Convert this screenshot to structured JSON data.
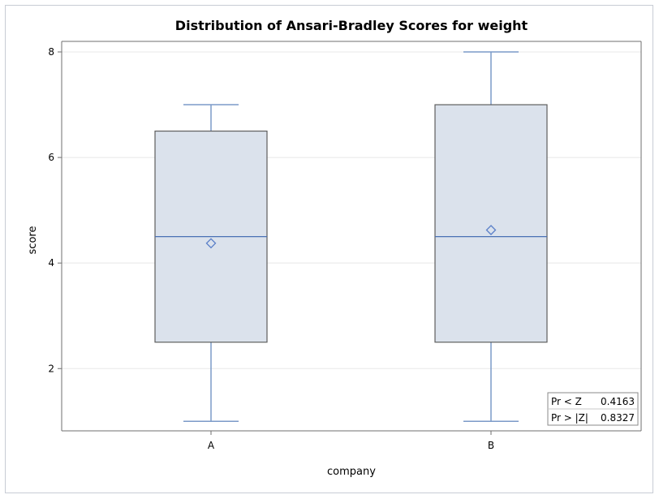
{
  "chart_data": {
    "type": "box",
    "title": "Distribution of Ansari-Bradley Scores for weight",
    "xlabel": "company",
    "ylabel": "score",
    "categories": [
      "A",
      "B"
    ],
    "ylim": [
      0.82,
      8.2
    ],
    "yticks": [
      2,
      4,
      6,
      8
    ],
    "grid": true,
    "boxes": [
      {
        "category": "A",
        "min": 1,
        "q1": 2.5,
        "median": 4.5,
        "q3": 6.5,
        "max": 7,
        "mean": 4.375
      },
      {
        "category": "B",
        "min": 1,
        "q1": 2.5,
        "median": 4.5,
        "q3": 7,
        "max": 8,
        "mean": 4.625
      }
    ],
    "inset_table": [
      {
        "label": "Pr < Z",
        "value": "0.4163"
      },
      {
        "label": "Pr > |Z|",
        "value": "0.8327"
      }
    ]
  },
  "colors": {
    "box_fill": "#dbe2ec",
    "box_stroke": "#5e5e5e",
    "whisker": "#7b9ac8",
    "median": "#4a70b5",
    "mean_marker": "#5a7fc8",
    "grid": "#e8e8e8",
    "axis": "#6f6f6f"
  }
}
